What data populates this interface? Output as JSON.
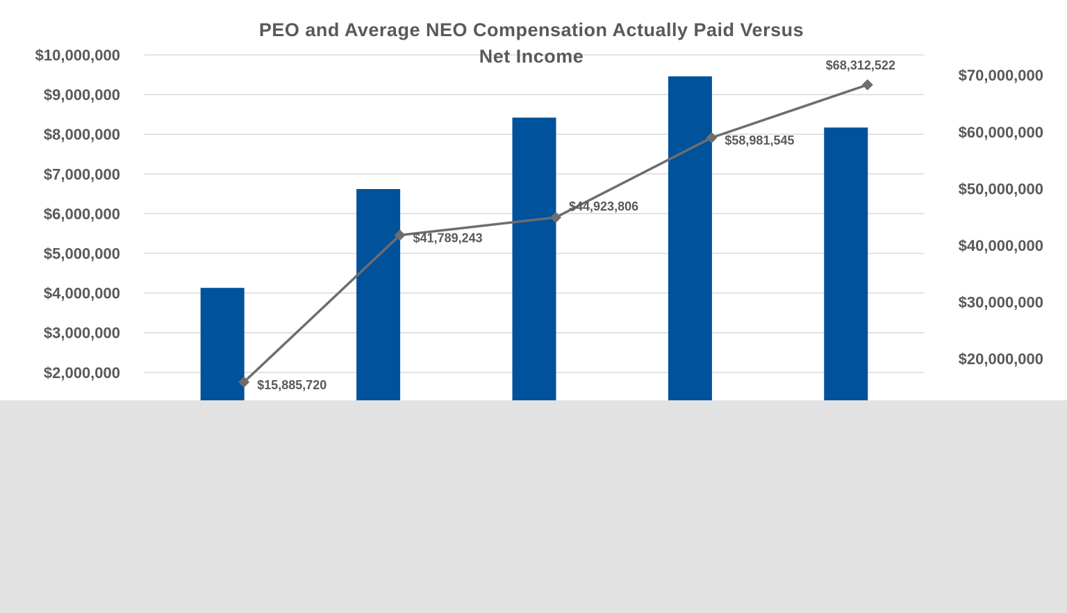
{
  "chart_data": {
    "type": "bar",
    "title_lines": [
      "PEO and Average NEO Compensation Actually Paid Versus",
      "Net Income"
    ],
    "categories": [
      "",
      "",
      "",
      "",
      ""
    ],
    "bar_series": {
      "axis": "left",
      "color": "#00529b",
      "values": [
        4130000,
        6620000,
        8420000,
        9460000,
        8170000
      ]
    },
    "line_series": {
      "axis": "right",
      "type": "line",
      "color": "#6d6d6d",
      "marker": "diamond",
      "values": [
        15885720,
        41789243,
        44923806,
        58981545,
        68312522
      ],
      "data_labels": [
        "$15,885,720",
        "$41,789,243",
        "$44,923,806",
        "$58,981,545",
        "$68,312,522"
      ]
    },
    "y_left": {
      "ticks": [
        2000000,
        3000000,
        4000000,
        5000000,
        6000000,
        7000000,
        8000000,
        9000000,
        10000000
      ],
      "tick_labels": [
        "$2,000,000",
        "$3,000,000",
        "$4,000,000",
        "$5,000,000",
        "$6,000,000",
        "$7,000,000",
        "$8,000,000",
        "$9,000,000",
        "$10,000,000"
      ]
    },
    "y_right": {
      "ticks": [
        20000000,
        30000000,
        40000000,
        50000000,
        60000000,
        70000000
      ],
      "tick_labels": [
        "$20,000,000",
        "$30,000,000",
        "$40,000,000",
        "$50,000,000",
        "$60,000,000",
        "$70,000,000"
      ]
    },
    "grid": true,
    "colors": {
      "gridline": "#d9d9d9",
      "text": "#595959",
      "background": "#ffffff",
      "occluder": "#e2e2e2"
    }
  }
}
